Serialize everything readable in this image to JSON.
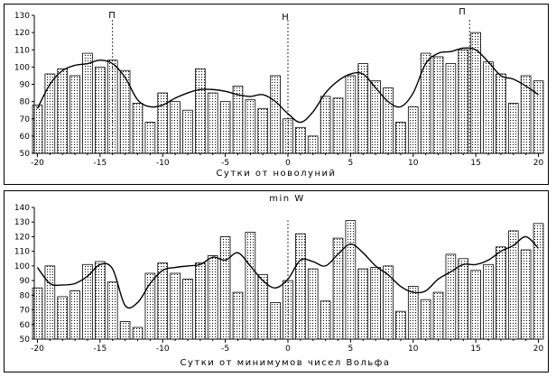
{
  "chart_data": [
    {
      "type": "bar",
      "series_type": "bar+smoothed-line",
      "title": "",
      "xlabel": "Сутки от новолуний",
      "ylabel": "",
      "xlim": [
        -20,
        20
      ],
      "ylim": [
        50,
        130
      ],
      "x_ticks": [
        -20,
        -15,
        -10,
        -5,
        0,
        5,
        10,
        15,
        20
      ],
      "y_ticks": [
        50,
        60,
        70,
        80,
        90,
        100,
        110,
        120,
        130
      ],
      "annotations": [
        {
          "label": "П",
          "x": -14
        },
        {
          "label": "Н",
          "x": 0
        },
        {
          "label": "П",
          "x": 14.5
        }
      ],
      "x": [
        -20,
        -19,
        -18,
        -17,
        -16,
        -15,
        -14,
        -13,
        -12,
        -11,
        -10,
        -9,
        -8,
        -7,
        -6,
        -5,
        -4,
        -3,
        -2,
        -1,
        0,
        1,
        2,
        3,
        4,
        5,
        6,
        7,
        8,
        9,
        10,
        11,
        12,
        13,
        14,
        15,
        16,
        17,
        18,
        19,
        20
      ],
      "values": [
        78,
        96,
        99,
        95,
        108,
        100,
        104,
        98,
        79,
        68,
        85,
        80,
        75,
        99,
        85,
        80,
        89,
        81,
        76,
        95,
        70,
        65,
        60,
        83,
        82,
        95,
        102,
        92,
        88,
        68,
        77,
        108,
        106,
        102,
        110,
        120,
        103,
        96,
        79,
        95,
        92
      ],
      "smoothed": [
        76,
        90,
        98,
        101,
        102,
        104,
        102,
        94,
        81,
        77,
        78,
        82,
        85,
        87,
        87,
        86,
        84,
        83,
        84,
        80,
        73,
        68,
        74,
        85,
        92,
        96,
        96,
        88,
        80,
        77,
        85,
        102,
        108,
        109,
        111,
        110,
        103,
        95,
        93,
        89,
        84
      ],
      "bar_pattern": "dotted",
      "grid": false,
      "legend": "none"
    },
    {
      "type": "bar",
      "series_type": "bar+smoothed-line",
      "title": "min W",
      "xlabel": "Сутки от минимумов чисел Вольфа",
      "ylabel": "",
      "xlim": [
        -20,
        20
      ],
      "ylim": [
        50,
        140
      ],
      "x_ticks": [
        -20,
        -15,
        -10,
        -5,
        0,
        5,
        10,
        15,
        20
      ],
      "y_ticks": [
        50,
        60,
        70,
        80,
        90,
        100,
        110,
        120,
        130,
        140
      ],
      "annotations": [],
      "x": [
        -20,
        -19,
        -18,
        -17,
        -16,
        -15,
        -14,
        -13,
        -12,
        -11,
        -10,
        -9,
        -8,
        -7,
        -6,
        -5,
        -4,
        -3,
        -2,
        -1,
        0,
        1,
        2,
        3,
        4,
        5,
        6,
        7,
        8,
        9,
        10,
        11,
        12,
        13,
        14,
        15,
        16,
        17,
        18,
        19,
        20
      ],
      "values": [
        85,
        100,
        79,
        83,
        101,
        103,
        89,
        62,
        58,
        95,
        102,
        95,
        91,
        102,
        107,
        120,
        82,
        123,
        94,
        75,
        90,
        122,
        98,
        76,
        119,
        131,
        98,
        99,
        100,
        69,
        86,
        77,
        82,
        108,
        105,
        97,
        101,
        113,
        124,
        111,
        129
      ],
      "smoothed": [
        99,
        88,
        87,
        88,
        93,
        101,
        98,
        73,
        75,
        88,
        97,
        99,
        100,
        101,
        106,
        104,
        109,
        100,
        90,
        85,
        91,
        104,
        103,
        100,
        108,
        115,
        109,
        100,
        94,
        86,
        82,
        83,
        91,
        96,
        101,
        101,
        104,
        110,
        114,
        120,
        112
      ],
      "bar_pattern": "dotted",
      "grid": false,
      "legend": "none"
    }
  ]
}
